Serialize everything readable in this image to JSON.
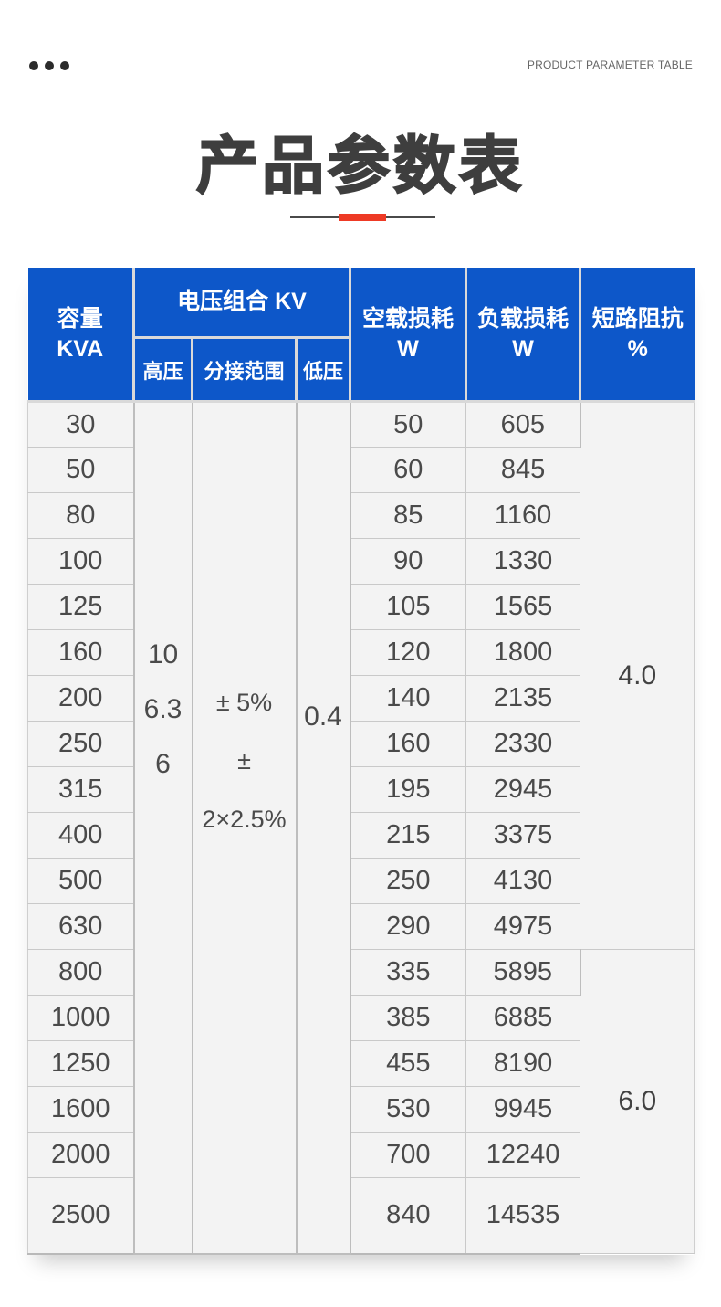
{
  "page": {
    "top_right_label": "PRODUCT PARAMETER TABLE",
    "title": "产品参数表"
  },
  "colors": {
    "header_blue": "#0d57c9",
    "accent_red": "#ee3a25",
    "body_bg": "#f3f3f3",
    "grid_border": "#c9c9c9",
    "text_dark": "#3e3e3e",
    "text_body": "#4a4a4a"
  },
  "table": {
    "header": {
      "capacity": [
        "容量",
        "KVA"
      ],
      "voltage_group": "电压组合 KV",
      "high_voltage": "高压",
      "tap_range": "分接范围",
      "low_voltage": "低压",
      "no_load": [
        "空载损耗",
        "W"
      ],
      "load": [
        "负载损耗",
        "W"
      ],
      "impedance": [
        "短路阻抗",
        "%"
      ]
    },
    "merged": {
      "high_voltage": [
        "10",
        "6.3",
        "6"
      ],
      "tap_range": [
        "± 5%",
        "± 2×2.5%"
      ],
      "low_voltage": "0.4",
      "impedance_groups": [
        {
          "value": "4.0",
          "row_span": 12
        },
        {
          "value": "6.0",
          "row_span": 6
        }
      ]
    },
    "rows": [
      {
        "kva": "30",
        "no_load": "50",
        "load": "605"
      },
      {
        "kva": "50",
        "no_load": "60",
        "load": "845"
      },
      {
        "kva": "80",
        "no_load": "85",
        "load": "1160"
      },
      {
        "kva": "100",
        "no_load": "90",
        "load": "1330"
      },
      {
        "kva": "125",
        "no_load": "105",
        "load": "1565"
      },
      {
        "kva": "160",
        "no_load": "120",
        "load": "1800"
      },
      {
        "kva": "200",
        "no_load": "140",
        "load": "2135"
      },
      {
        "kva": "250",
        "no_load": "160",
        "load": "2330"
      },
      {
        "kva": "315",
        "no_load": "195",
        "load": "2945"
      },
      {
        "kva": "400",
        "no_load": "215",
        "load": "3375"
      },
      {
        "kva": "500",
        "no_load": "250",
        "load": "4130"
      },
      {
        "kva": "630",
        "no_load": "290",
        "load": "4975"
      },
      {
        "kva": "800",
        "no_load": "335",
        "load": "5895"
      },
      {
        "kva": "1000",
        "no_load": "385",
        "load": "6885"
      },
      {
        "kva": "1250",
        "no_load": "455",
        "load": "8190"
      },
      {
        "kva": "1600",
        "no_load": "530",
        "load": "9945"
      },
      {
        "kva": "2000",
        "no_load": "700",
        "load": "12240"
      },
      {
        "kva": "2500",
        "no_load": "840",
        "load": "14535"
      }
    ]
  }
}
